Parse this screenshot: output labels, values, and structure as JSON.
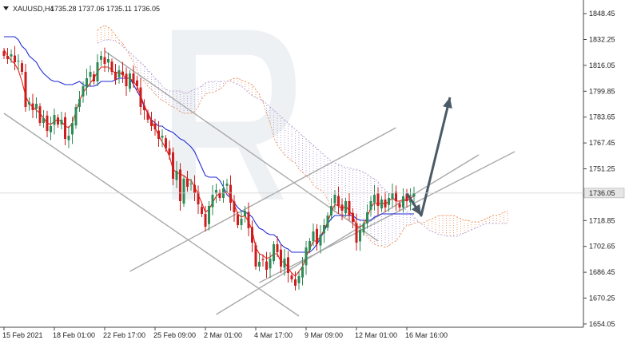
{
  "header": {
    "symbol": "XAUUSD,H4",
    "ohlc": "1735.28 1737.06 1735.11 1736.05"
  },
  "colors": {
    "bull": "#2e8b57",
    "bear": "#cc1e1e",
    "tenkan": "#e8221a",
    "kijun": "#1f2bd6",
    "cloud_a": "#f0a070",
    "cloud_b": "#b9a6d6",
    "channel": "#a8a8a8",
    "arrow": "#4a5a66",
    "price_marker": "#e6e6e6"
  },
  "chart_data": {
    "type": "candlestick",
    "symbol": "XAUUSD",
    "timeframe": "H4",
    "ylim": [
      1652,
      1857
    ],
    "last_price": "1736.05",
    "y_ticks": [
      "1848.45",
      "1832.25",
      "1816.05",
      "1799.85",
      "1783.65",
      "1767.45",
      "1751.25",
      "1735.05",
      "1718.85",
      "1702.65",
      "1686.45",
      "1670.25",
      "1654.05"
    ],
    "x_ticks": [
      {
        "label": "15 Feb 2021",
        "bar": 0
      },
      {
        "label": "18 Feb 01:00",
        "bar": 14
      },
      {
        "label": "22 Feb 17:00",
        "bar": 28
      },
      {
        "label": "25 Feb 09:00",
        "bar": 42
      },
      {
        "label": "2 Mar 01:00",
        "bar": 56
      },
      {
        "label": "4 Mar 17:00",
        "bar": 70
      },
      {
        "label": "9 Mar 09:00",
        "bar": 84
      },
      {
        "label": "12 Mar 01:00",
        "bar": 98
      },
      {
        "label": "16 Mar 16:00",
        "bar": 112
      }
    ],
    "close": [
      1822,
      1820,
      1823,
      1818,
      1819,
      1812,
      1790,
      1793,
      1788,
      1792,
      1780,
      1783,
      1775,
      1778,
      1785,
      1779,
      1782,
      1770,
      1772,
      1780,
      1790,
      1795,
      1803,
      1808,
      1812,
      1806,
      1818,
      1822,
      1817,
      1820,
      1812,
      1807,
      1813,
      1810,
      1803,
      1811,
      1805,
      1803,
      1790,
      1788,
      1782,
      1778,
      1776,
      1770,
      1772,
      1764,
      1760,
      1745,
      1750,
      1731,
      1745,
      1740,
      1742,
      1736,
      1729,
      1723,
      1715,
      1728,
      1735,
      1738,
      1733,
      1739,
      1742,
      1730,
      1724,
      1716,
      1720,
      1725,
      1714,
      1705,
      1690,
      1693,
      1694,
      1688,
      1695,
      1704,
      1699,
      1690,
      1695,
      1686,
      1682,
      1678,
      1684,
      1690,
      1702,
      1706,
      1712,
      1704,
      1710,
      1716,
      1722,
      1728,
      1735,
      1728,
      1725,
      1731,
      1722,
      1718,
      1705,
      1713,
      1717,
      1724,
      1731,
      1735,
      1728,
      1732,
      1727,
      1733,
      1736,
      1731,
      1727,
      1734,
      1731,
      1733,
      1736
    ],
    "tenkan": [
      1826,
      1822,
      1819,
      1817,
      1813,
      1806,
      1797,
      1792,
      1790,
      1788,
      1786,
      1783,
      1780,
      1779,
      1781,
      1782,
      1781,
      1778,
      1777,
      1780,
      1787,
      1794,
      1799,
      1802,
      1805,
      1808,
      1812,
      1815,
      1815,
      1815,
      1813,
      1811,
      1812,
      1810,
      1808,
      1808,
      1806,
      1803,
      1797,
      1791,
      1786,
      1781,
      1777,
      1772,
      1768,
      1764,
      1759,
      1751,
      1749,
      1748,
      1747,
      1745,
      1744,
      1740,
      1735,
      1730,
      1724,
      1726,
      1730,
      1734,
      1736,
      1736,
      1737,
      1734,
      1729,
      1723,
      1721,
      1722,
      1718,
      1713,
      1702,
      1698,
      1697,
      1695,
      1696,
      1698,
      1698,
      1693,
      1693,
      1689,
      1686,
      1684,
      1687,
      1690,
      1696,
      1701,
      1706,
      1706,
      1709,
      1713,
      1718,
      1724,
      1729,
      1728,
      1726,
      1728,
      1725,
      1722,
      1715,
      1715,
      1716,
      1721,
      1727,
      1730,
      1729,
      1730,
      1729,
      1731,
      1733,
      1731,
      1731,
      1732,
      1731,
      1733,
      1734
    ],
    "kijun": [
      1834,
      1834,
      1834,
      1834,
      1832,
      1828,
      1826,
      1822,
      1820,
      1818,
      1814,
      1811,
      1809,
      1807,
      1806,
      1806,
      1805,
      1804,
      1804,
      1804,
      1805,
      1806,
      1804,
      1803,
      1803,
      1803,
      1804,
      1806,
      1806,
      1806,
      1806,
      1807,
      1808,
      1808,
      1808,
      1808,
      1804,
      1800,
      1796,
      1790,
      1786,
      1782,
      1780,
      1778,
      1778,
      1776,
      1775,
      1774,
      1772,
      1770,
      1769,
      1767,
      1765,
      1762,
      1757,
      1752,
      1747,
      1746,
      1746,
      1746,
      1744,
      1740,
      1735,
      1733,
      1730,
      1727,
      1725,
      1724,
      1723,
      1721,
      1717,
      1714,
      1713,
      1711,
      1710,
      1710,
      1708,
      1704,
      1702,
      1701,
      1699,
      1699,
      1699,
      1699,
      1699,
      1699,
      1701,
      1704,
      1708,
      1712,
      1717,
      1720,
      1722,
      1722,
      1722,
      1722,
      1722,
      1722,
      1720,
      1719,
      1719,
      1719,
      1719,
      1721,
      1722,
      1723,
      1723,
      1723,
      1723,
      1723,
      1723,
      1723,
      1723,
      1723,
      1723
    ],
    "senkou_a": [
      1838,
      1840,
      1841,
      1840,
      1838,
      1835,
      1832,
      1830,
      1826,
      1822,
      1818,
      1813,
      1808,
      1806,
      1803,
      1801,
      1798,
      1796,
      1794,
      1793,
      1791,
      1790,
      1789,
      1787,
      1786,
      1786,
      1786,
      1787,
      1790,
      1795,
      1798,
      1799,
      1799,
      1800,
      1801,
      1803,
      1806,
      1807,
      1808,
      1808,
      1807,
      1806,
      1805,
      1804,
      1801,
      1798,
      1793,
      1786,
      1780,
      1771,
      1766,
      1763,
      1760,
      1758,
      1756,
      1755,
      1751,
      1749,
      1747,
      1745,
      1741,
      1739,
      1738,
      1736,
      1732,
      1726,
      1724,
      1723,
      1723,
      1721,
      1719,
      1717,
      1714,
      1712,
      1711,
      1709,
      1706,
      1704,
      1703,
      1703,
      1702,
      1703,
      1705,
      1706,
      1709,
      1713,
      1716,
      1716,
      1717,
      1718,
      1717,
      1718,
      1719,
      1720,
      1721,
      1722,
      1722,
      1722,
      1722,
      1722,
      1721,
      1720,
      1719,
      1719,
      1718,
      1718,
      1718,
      1719,
      1720,
      1721,
      1722,
      1722,
      1723,
      1724,
      1725
    ],
    "senkou_b": [
      1830,
      1831,
      1832,
      1832,
      1832,
      1831,
      1830,
      1828,
      1826,
      1824,
      1822,
      1820,
      1818,
      1816,
      1813,
      1811,
      1808,
      1806,
      1803,
      1801,
      1800,
      1800,
      1800,
      1800,
      1799,
      1799,
      1800,
      1801,
      1802,
      1803,
      1805,
      1806,
      1806,
      1806,
      1806,
      1806,
      1806,
      1806,
      1805,
      1804,
      1803,
      1801,
      1799,
      1797,
      1796,
      1795,
      1794,
      1792,
      1790,
      1788,
      1786,
      1784,
      1782,
      1780,
      1778,
      1776,
      1774,
      1772,
      1770,
      1768,
      1766,
      1764,
      1762,
      1760,
      1758,
      1756,
      1755,
      1754,
      1753,
      1752,
      1752,
      1751,
      1751,
      1750,
      1749,
      1748,
      1746,
      1745,
      1743,
      1740,
      1738,
      1736,
      1734,
      1731,
      1729,
      1727,
      1725,
      1723,
      1721,
      1719,
      1717,
      1715,
      1713,
      1712,
      1711,
      1710,
      1710,
      1709,
      1709,
      1709,
      1709,
      1710,
      1711,
      1712,
      1713,
      1714,
      1715,
      1716,
      1717,
      1717,
      1717,
      1717,
      1717,
      1717,
      1717
    ],
    "channel_lines": [
      {
        "from": {
          "bar": 28,
          "price": 1825
        },
        "to": {
          "bar": 104,
          "price": 1706
        }
      },
      {
        "from": {
          "bar": 0,
          "price": 1786
        },
        "to": {
          "bar": 82,
          "price": 1659
        }
      },
      {
        "from": {
          "bar": 71,
          "price": 1680
        },
        "to": {
          "bar": 142,
          "price": 1762
        }
      },
      {
        "from": {
          "bar": 35,
          "price": 1687
        },
        "to": {
          "bar": 109,
          "price": 1777
        }
      },
      {
        "from": {
          "bar": 59,
          "price": 1660
        },
        "to": {
          "bar": 132,
          "price": 1760
        }
      }
    ],
    "forecast_path": [
      {
        "bar": 112,
        "price": 1736
      },
      {
        "bar": 116,
        "price": 1722
      },
      {
        "bar": 124,
        "price": 1796
      }
    ]
  }
}
